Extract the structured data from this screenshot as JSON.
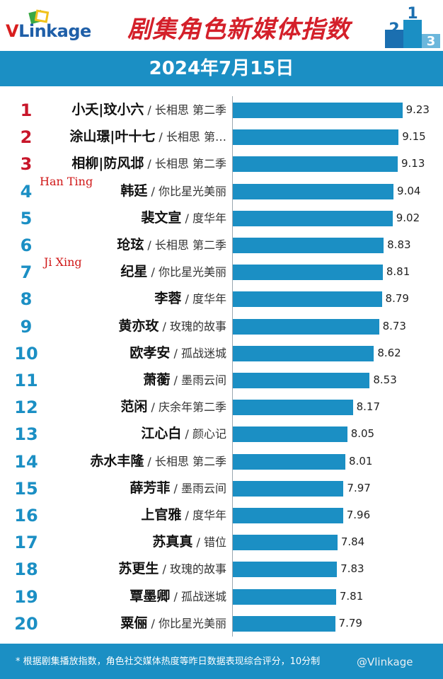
{
  "header": {
    "brand_v": "V",
    "brand_rest": "Linkage",
    "title": "剧集角色新媒体指数",
    "podium_labels": [
      "2",
      "1",
      "3"
    ]
  },
  "date": "2024年7月15日",
  "chart_data": {
    "type": "bar",
    "orientation": "horizontal",
    "title": "剧集角色新媒体指数",
    "subtitle": "2024年7月15日",
    "xlim": [
      5.6,
      9.5
    ],
    "value_labels": true,
    "rank_colors": {
      "top3": "#c8162a",
      "others": "#1b8fc4"
    },
    "bar_color": "#1b8fc4",
    "categories": [
      {
        "rank": "1",
        "role": "小夭|玟小六",
        "drama": "长相思 第二季",
        "value": 9.23
      },
      {
        "rank": "2",
        "role": "涂山璟|叶十七",
        "drama": "长相思 第…",
        "value": 9.15
      },
      {
        "rank": "3",
        "role": "相柳|防风邶",
        "drama": "长相思 第二季",
        "value": 9.13
      },
      {
        "rank": "4",
        "role": "韩廷",
        "drama": "你比星光美丽",
        "value": 9.04
      },
      {
        "rank": "5",
        "role": "裴文宣",
        "drama": "度华年",
        "value": 9.02
      },
      {
        "rank": "6",
        "role": "玱玹",
        "drama": "长相思 第二季",
        "value": 8.83
      },
      {
        "rank": "7",
        "role": "纪星",
        "drama": "你比星光美丽",
        "value": 8.81
      },
      {
        "rank": "8",
        "role": "李蓉",
        "drama": "度华年",
        "value": 8.79
      },
      {
        "rank": "9",
        "role": "黄亦玫",
        "drama": "玫瑰的故事",
        "value": 8.73
      },
      {
        "rank": "10",
        "role": "欧孝安",
        "drama": "孤战迷城",
        "value": 8.62
      },
      {
        "rank": "11",
        "role": "萧蘅",
        "drama": "墨雨云间",
        "value": 8.53
      },
      {
        "rank": "12",
        "role": "范闲",
        "drama": "庆余年第二季",
        "value": 8.17
      },
      {
        "rank": "13",
        "role": "江心白",
        "drama": "颜心记",
        "value": 8.05
      },
      {
        "rank": "14",
        "role": "赤水丰隆",
        "drama": "长相思 第二季",
        "value": 8.01
      },
      {
        "rank": "15",
        "role": "薛芳菲",
        "drama": "墨雨云间",
        "value": 7.97
      },
      {
        "rank": "16",
        "role": "上官雅",
        "drama": "度华年",
        "value": 7.96
      },
      {
        "rank": "17",
        "role": "苏真真",
        "drama": "错位",
        "value": 7.84
      },
      {
        "rank": "18",
        "role": "苏更生",
        "drama": "玫瑰的故事",
        "value": 7.83
      },
      {
        "rank": "19",
        "role": "覃墨卿",
        "drama": "孤战迷城",
        "value": 7.81
      },
      {
        "rank": "20",
        "role": "粟俪",
        "drama": "你比星光美丽",
        "value": 7.79
      }
    ],
    "annotations": [
      {
        "text": "Han Ting",
        "row_rank": "4",
        "color": "#d01818"
      },
      {
        "text": "Ji Xing",
        "row_rank": "7",
        "color": "#d01818"
      }
    ]
  },
  "footer": {
    "note": "* 根据剧集播放指数，角色社交媒体热度等昨日数据表现综合评分，10分制",
    "watermark": "@Vlinkage"
  }
}
